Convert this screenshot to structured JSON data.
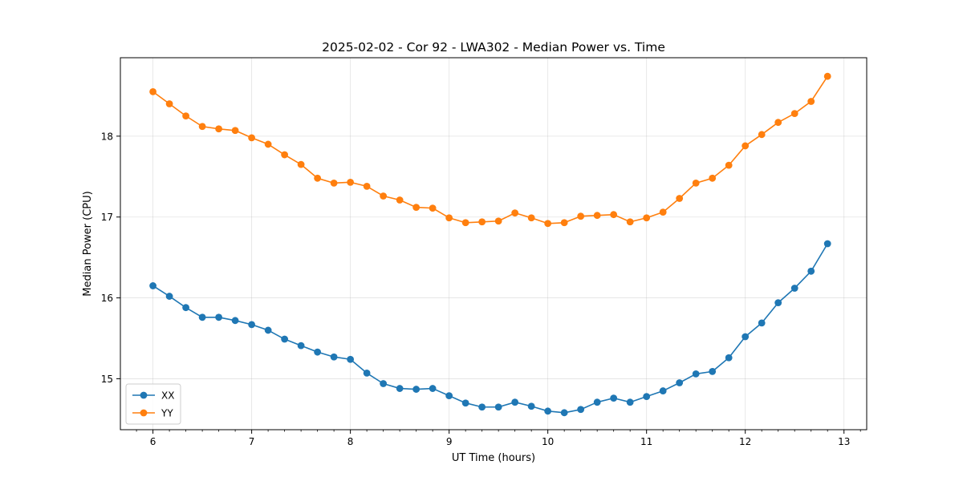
{
  "chart_data": {
    "type": "line",
    "title": "2025-02-02 - Cor 92 - LWA302 - Median Power vs. Time",
    "xlabel": "UT Time (hours)",
    "ylabel": "Median Power (CPU)",
    "xlim": [
      5.67,
      13.23
    ],
    "ylim": [
      14.37,
      18.97
    ],
    "xticks": [
      6,
      7,
      8,
      9,
      10,
      11,
      12,
      13
    ],
    "yticks": [
      15,
      16,
      17,
      18
    ],
    "grid": true,
    "legend_position": "lower-left",
    "x": [
      6.0,
      6.1667,
      6.3333,
      6.5,
      6.6667,
      6.8333,
      7.0,
      7.1667,
      7.3333,
      7.5,
      7.6667,
      7.8333,
      8.0,
      8.1667,
      8.3333,
      8.5,
      8.6667,
      8.8333,
      9.0,
      9.1667,
      9.3333,
      9.5,
      9.6667,
      9.8333,
      10.0,
      10.1667,
      10.3333,
      10.5,
      10.6667,
      10.8333,
      11.0,
      11.1667,
      11.3333,
      11.5,
      11.6667,
      11.8333,
      12.0,
      12.1667,
      12.3333,
      12.5,
      12.6667,
      12.8333
    ],
    "series": [
      {
        "name": "XX",
        "color": "#1f77b4",
        "values": [
          16.15,
          16.02,
          15.88,
          15.76,
          15.76,
          15.72,
          15.67,
          15.6,
          15.49,
          15.41,
          15.33,
          15.27,
          15.24,
          15.07,
          14.94,
          14.88,
          14.87,
          14.88,
          14.79,
          14.7,
          14.65,
          14.65,
          14.71,
          14.66,
          14.6,
          14.58,
          14.62,
          14.71,
          14.76,
          14.71,
          14.78,
          14.85,
          14.95,
          15.06,
          15.09,
          15.26,
          15.52,
          15.69,
          15.94,
          16.12,
          16.33,
          16.67
        ]
      },
      {
        "name": "YY",
        "color": "#ff7f0e",
        "values": [
          18.55,
          18.4,
          18.25,
          18.12,
          18.09,
          18.07,
          17.98,
          17.9,
          17.77,
          17.65,
          17.48,
          17.42,
          17.43,
          17.38,
          17.26,
          17.21,
          17.12,
          17.11,
          16.99,
          16.93,
          16.94,
          16.95,
          17.05,
          16.99,
          16.92,
          16.93,
          17.01,
          17.02,
          17.03,
          16.94,
          16.99,
          17.06,
          17.23,
          17.42,
          17.48,
          17.64,
          17.88,
          18.02,
          18.17,
          18.28,
          18.43,
          18.74
        ]
      }
    ]
  }
}
